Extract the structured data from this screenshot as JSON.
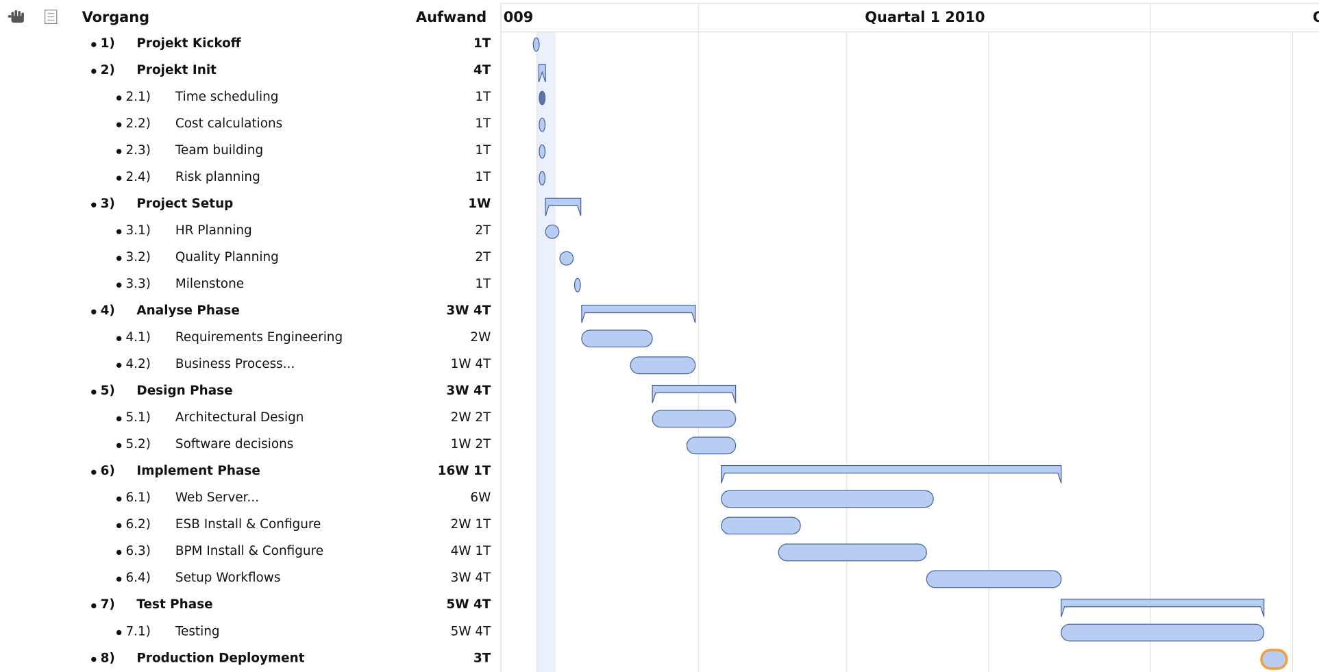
{
  "header": {
    "task_column": "Vorgang",
    "effort_column": "Aufwand",
    "timeline": [
      "009",
      "Quartal 1 2010",
      "Q"
    ]
  },
  "tasks": [
    {
      "number": "1)",
      "name": "Projekt Kickoff",
      "effort": "1T"
    },
    {
      "number": "2)",
      "name": "Projekt Init",
      "effort": "4T"
    },
    {
      "number": "2.1)",
      "name": "Time scheduling",
      "effort": "1T"
    },
    {
      "number": "2.2)",
      "name": "Cost calculations",
      "effort": "1T"
    },
    {
      "number": "2.3)",
      "name": "Team building",
      "effort": "1T"
    },
    {
      "number": "2.4)",
      "name": "Risk planning",
      "effort": "1T"
    },
    {
      "number": "3)",
      "name": "Project Setup",
      "effort": "1W"
    },
    {
      "number": "3.1)",
      "name": "HR Planning",
      "effort": "2T"
    },
    {
      "number": "3.2)",
      "name": "Quality Planning",
      "effort": "2T"
    },
    {
      "number": "3.3)",
      "name": "Milenstone",
      "effort": "1T"
    },
    {
      "number": "4)",
      "name": "Analyse Phase",
      "effort": "3W 4T"
    },
    {
      "number": "4.1)",
      "name": "Requirements Engineering",
      "effort": "2W"
    },
    {
      "number": "4.2)",
      "name": "Business Process...",
      "effort": "1W 4T"
    },
    {
      "number": "5)",
      "name": "Design Phase",
      "effort": "3W 4T"
    },
    {
      "number": "5.1)",
      "name": "Architectural Design",
      "effort": "2W 2T"
    },
    {
      "number": "5.2)",
      "name": "Software decisions",
      "effort": "1W 2T"
    },
    {
      "number": "6)",
      "name": "Implement Phase",
      "effort": "16W 1T"
    },
    {
      "number": "6.1)",
      "name": "Web Server...",
      "effort": "6W"
    },
    {
      "number": "6.2)",
      "name": "ESB Install & Configure",
      "effort": "2W 1T"
    },
    {
      "number": "6.3)",
      "name": "BPM Install & Configure",
      "effort": "4W 1T"
    },
    {
      "number": "6.4)",
      "name": "Setup Workflows",
      "effort": "3W 4T"
    },
    {
      "number": "7)",
      "name": "Test Phase",
      "effort": "5W 4T"
    },
    {
      "number": "7.1)",
      "name": "Testing",
      "effort": "5W 4T"
    },
    {
      "number": "8)",
      "name": "Production Deployment",
      "effort": "3T"
    }
  ]
}
